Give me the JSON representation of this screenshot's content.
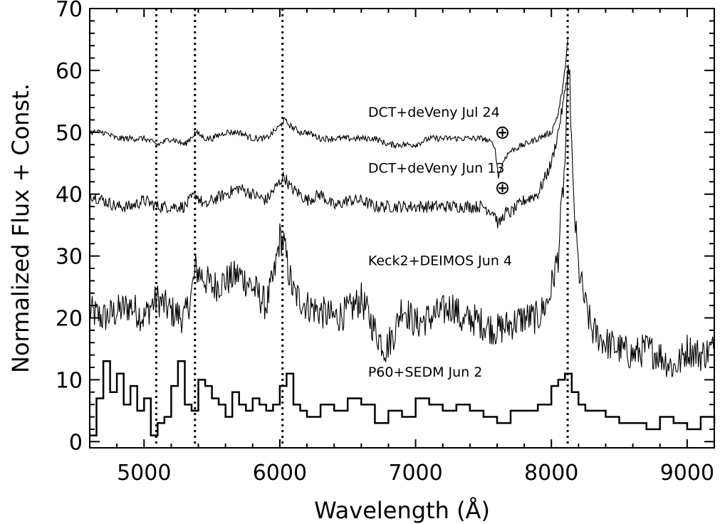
{
  "chart_data": {
    "type": "line",
    "title": "",
    "xlabel": "Wavelength (Å)",
    "ylabel": "Normalized Flux + Const.",
    "xlim": [
      4600,
      9200
    ],
    "ylim": [
      -1,
      70
    ],
    "xticks": [
      5000,
      6000,
      7000,
      8000,
      9000
    ],
    "xtick_labels": [
      "5000",
      "6000",
      "7000",
      "8000",
      "9000"
    ],
    "yticks": [
      0,
      10,
      20,
      30,
      40,
      50,
      60,
      70
    ],
    "ytick_labels": [
      "0",
      "10",
      "20",
      "30",
      "40",
      "50",
      "60",
      "70"
    ],
    "grid": false,
    "legend": "none",
    "vertical_lines": [
      5090,
      5375,
      6020,
      8120
    ],
    "series": [
      {
        "name": "P60+SEDM Jun 2",
        "style": "step",
        "x": [
          4600,
          4650,
          4700,
          4750,
          4800,
          4850,
          4900,
          4950,
          5000,
          5050,
          5100,
          5150,
          5200,
          5250,
          5300,
          5350,
          5400,
          5450,
          5500,
          5550,
          5600,
          5650,
          5700,
          5750,
          5800,
          5850,
          5900,
          5950,
          6000,
          6050,
          6100,
          6150,
          6200,
          6300,
          6400,
          6500,
          6600,
          6700,
          6800,
          6900,
          7000,
          7100,
          7200,
          7300,
          7400,
          7500,
          7600,
          7700,
          7800,
          7900,
          8000,
          8050,
          8100,
          8150,
          8200,
          8250,
          8300,
          8400,
          8500,
          8600,
          8700,
          8800,
          8900,
          9000,
          9100,
          9200
        ],
        "y": [
          1,
          7,
          13,
          8,
          11,
          6,
          9,
          5,
          7,
          1,
          3,
          4,
          9,
          13,
          6,
          5,
          10,
          9,
          7,
          6,
          4,
          8,
          6,
          5,
          7,
          6,
          5,
          6,
          9,
          11,
          6,
          5,
          4,
          6,
          5,
          7,
          6,
          3,
          5,
          4,
          7,
          6,
          5,
          6,
          5,
          4,
          3,
          5,
          5,
          6,
          9,
          10,
          11,
          8,
          6,
          5,
          5,
          4,
          3,
          3,
          2,
          4,
          3,
          2,
          4,
          3
        ]
      },
      {
        "name": "Keck2+DEIMOS Jun 4",
        "style": "line",
        "x": [
          4600,
          4700,
          4800,
          4900,
          5000,
          5050,
          5100,
          5200,
          5300,
          5350,
          5380,
          5420,
          5500,
          5600,
          5700,
          5800,
          5900,
          5960,
          6000,
          6030,
          6060,
          6100,
          6200,
          6300,
          6400,
          6500,
          6600,
          6700,
          6780,
          6850,
          6900,
          7000,
          7100,
          7200,
          7280,
          7350,
          7400,
          7500,
          7600,
          7700,
          7800,
          7900,
          7980,
          8050,
          8100,
          8130,
          8160,
          8200,
          8250,
          8300,
          8400,
          8500,
          8600,
          8700,
          8800,
          8900,
          8950,
          9000,
          9100,
          9200
        ],
        "y": [
          21,
          20,
          21,
          22,
          20,
          22,
          23,
          21,
          20,
          24,
          28,
          27,
          25,
          26,
          27,
          25,
          22,
          27,
          33,
          32,
          28,
          24,
          22,
          21,
          20,
          21,
          23,
          18,
          15,
          18,
          22,
          19,
          20,
          21,
          22,
          19,
          20,
          19,
          18,
          19,
          20,
          20,
          23,
          30,
          45,
          62,
          40,
          28,
          22,
          18,
          16,
          15,
          14,
          15,
          14,
          12,
          13,
          15,
          14,
          15
        ]
      },
      {
        "name": "DCT+deVeny Jun 13",
        "style": "line",
        "x": [
          4600,
          4700,
          4800,
          4900,
          5000,
          5100,
          5200,
          5300,
          5380,
          5450,
          5500,
          5600,
          5700,
          5800,
          5900,
          6000,
          6030,
          6080,
          6150,
          6200,
          6300,
          6400,
          6500,
          6600,
          6700,
          6800,
          6900,
          7000,
          7100,
          7200,
          7300,
          7400,
          7500,
          7580,
          7610,
          7660,
          7700,
          7800,
          7900,
          8000,
          8050,
          8090,
          8120
        ],
        "y": [
          40,
          39,
          38,
          38,
          39,
          38,
          38,
          38,
          40,
          38,
          39,
          40,
          41,
          40,
          39,
          42,
          43,
          41,
          40,
          39,
          40,
          38,
          39,
          39,
          38,
          38,
          38,
          38,
          38,
          38,
          38,
          38,
          38,
          37,
          35,
          37,
          37,
          39,
          40,
          45,
          50,
          55,
          60
        ]
      },
      {
        "name": "DCT+deVeny Jul 24",
        "style": "line",
        "x": [
          4600,
          4700,
          4800,
          4900,
          5000,
          5100,
          5200,
          5300,
          5380,
          5450,
          5500,
          5600,
          5700,
          5800,
          5900,
          6000,
          6030,
          6080,
          6150,
          6200,
          6300,
          6400,
          6500,
          6600,
          6700,
          6800,
          6900,
          7000,
          7100,
          7200,
          7300,
          7400,
          7500,
          7580,
          7610,
          7660,
          7700,
          7800,
          7900,
          8000,
          8050,
          8090,
          8120
        ],
        "y": [
          50,
          50,
          49,
          49,
          49,
          48,
          49,
          48,
          50,
          49,
          49,
          50,
          50,
          49,
          49,
          51,
          52,
          51,
          50,
          50,
          49,
          49,
          49,
          49,
          49,
          48,
          48,
          48,
          49,
          49,
          49,
          49,
          49,
          48,
          43,
          46,
          47,
          48,
          49,
          50,
          53,
          58,
          65
        ]
      }
    ],
    "annotations": [
      {
        "text": "DCT+deVeny Jul 24",
        "x": 6650,
        "y": 52.5
      },
      {
        "text": "DCT+deVeny Jun 13",
        "x": 6650,
        "y": 43.5
      },
      {
        "text": "Keck2+DEIMOS Jun 4",
        "x": 6650,
        "y": 28.5
      },
      {
        "text": "P60+SEDM Jun 2",
        "x": 6650,
        "y": 10.5
      },
      {
        "text": "⊕",
        "x": 7640,
        "y": 49
      },
      {
        "text": "⊕",
        "x": 7640,
        "y": 40
      }
    ]
  }
}
